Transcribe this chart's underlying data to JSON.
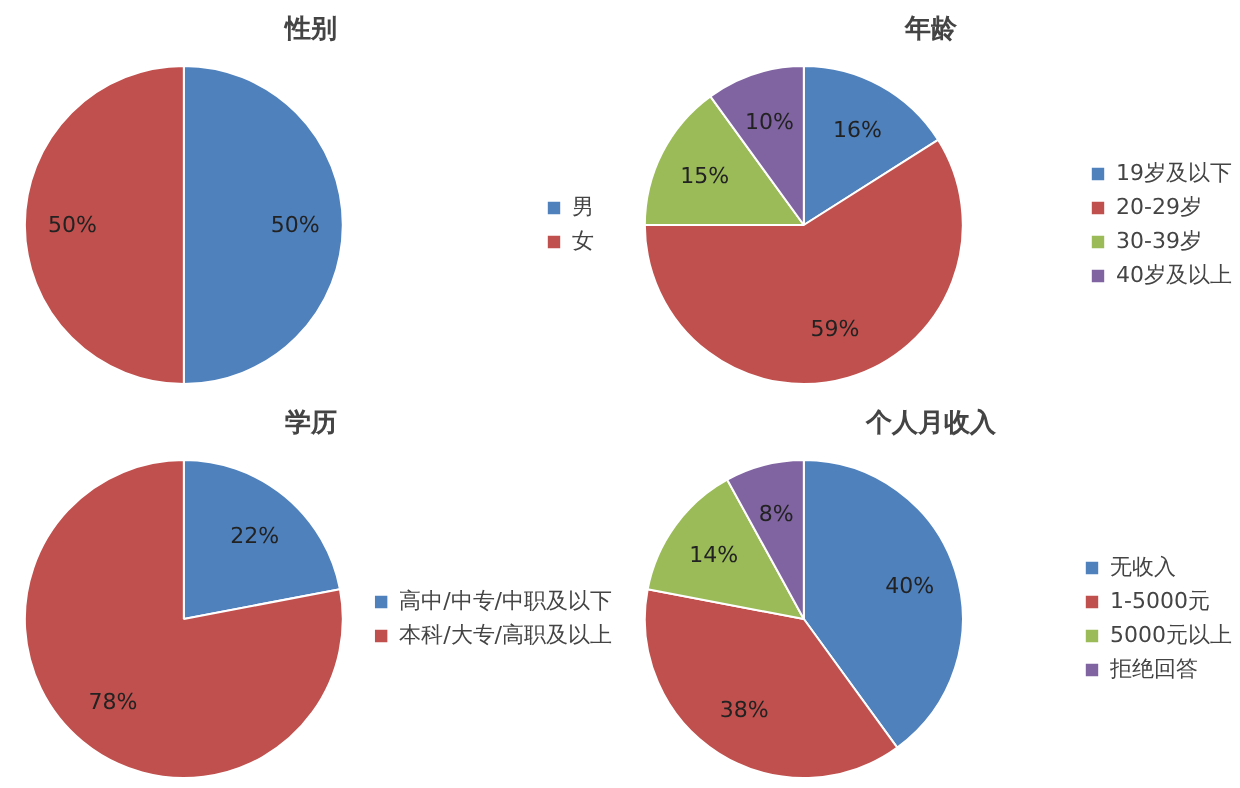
{
  "chart_data": [
    {
      "type": "pie",
      "title": "性别",
      "categories": [
        "男",
        "女"
      ],
      "values": [
        50,
        50
      ],
      "colors": [
        "#4f81bd",
        "#c0504d"
      ],
      "value_labels": [
        "50%",
        "50%"
      ],
      "legend": "right"
    },
    {
      "type": "pie",
      "title": "年龄",
      "categories": [
        "19岁及以下",
        "20-29岁",
        "30-39岁",
        "40岁及以上"
      ],
      "values": [
        16,
        59,
        15,
        10
      ],
      "colors": [
        "#4f81bd",
        "#c0504d",
        "#9bbb59",
        "#8064a2"
      ],
      "value_labels": [
        "16%",
        "59%",
        "15%",
        "10%"
      ],
      "legend": "right"
    },
    {
      "type": "pie",
      "title": "学历",
      "categories": [
        "高中/中专/中职及以下",
        "本科/大专/高职及以上"
      ],
      "values": [
        22,
        78
      ],
      "colors": [
        "#4f81bd",
        "#c0504d"
      ],
      "value_labels": [
        "22%",
        "78%"
      ],
      "legend": "right"
    },
    {
      "type": "pie",
      "title": "个人月收入",
      "categories": [
        "无收入",
        "1-5000元",
        "5000元以上",
        "拒绝回答"
      ],
      "values": [
        40,
        38,
        14,
        8
      ],
      "colors": [
        "#4f81bd",
        "#c0504d",
        "#9bbb59",
        "#8064a2"
      ],
      "value_labels": [
        "40%",
        "38%",
        "14%",
        "8%"
      ],
      "legend": "right"
    }
  ]
}
